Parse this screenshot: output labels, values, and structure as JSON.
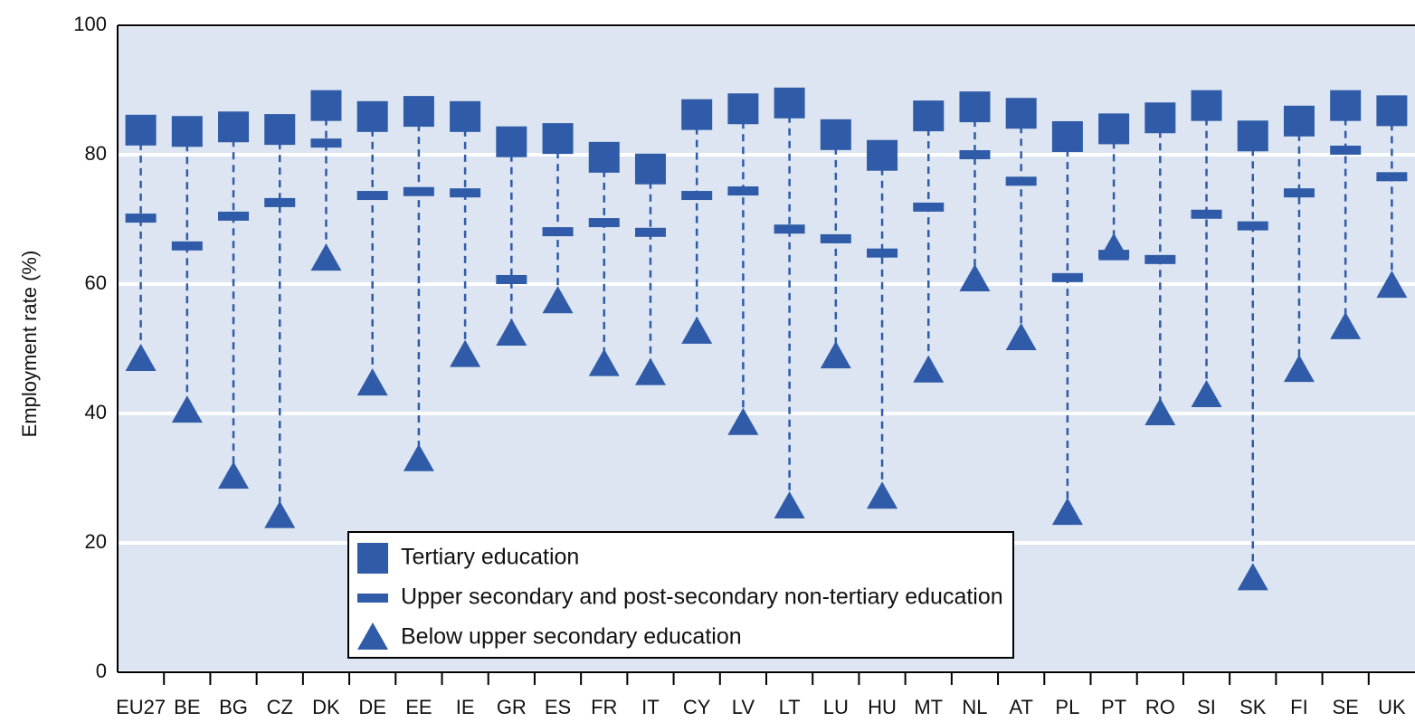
{
  "chart_data": {
    "type": "dot-range",
    "y_label": "Employment rate (%)",
    "categories": [
      "EU27",
      "BE",
      "BG",
      "CZ",
      "DK",
      "DE",
      "EE",
      "IE",
      "GR",
      "ES",
      "FR",
      "IT",
      "CY",
      "LV",
      "LT",
      "LU",
      "HU",
      "MT",
      "NL",
      "AT",
      "PL",
      "PT",
      "RO",
      "SI",
      "SK",
      "FI",
      "SE",
      "UK"
    ],
    "series": [
      {
        "name": "Tertiary education",
        "color": "#2f5ba8",
        "marker": "square",
        "values": [
          83.8,
          83.6,
          84.3,
          83.9,
          87.6,
          85.9,
          86.7,
          85.9,
          82.0,
          82.5,
          79.6,
          77.8,
          86.2,
          87.1,
          88.0,
          83.1,
          79.9,
          86.0,
          87.4,
          86.4,
          82.8,
          84.0,
          85.7,
          87.6,
          82.9,
          85.2,
          87.6,
          86.8
        ]
      },
      {
        "name": "Upper secondary and post-secondary non-tertiary education",
        "color": "#2f5ba8",
        "marker": "dash",
        "values": [
          70.2,
          65.9,
          70.5,
          72.6,
          81.8,
          73.7,
          74.3,
          74.1,
          60.7,
          68.1,
          69.5,
          68.0,
          73.7,
          74.4,
          68.5,
          67.0,
          64.8,
          71.9,
          80.0,
          75.9,
          61.0,
          64.6,
          63.8,
          70.8,
          69.0,
          74.1,
          80.7,
          76.6
        ]
      },
      {
        "name": "Below upper secondary education",
        "color": "#2f5ba8",
        "marker": "triangle",
        "values": [
          48.4,
          40.4,
          30.2,
          24.1,
          63.9,
          44.6,
          32.9,
          49.0,
          52.3,
          57.3,
          47.6,
          46.2,
          52.6,
          38.5,
          25.6,
          48.8,
          27.1,
          46.6,
          60.7,
          51.6,
          24.6,
          65.5,
          40.0,
          42.8,
          14.5,
          46.7,
          53.3,
          59.7
        ]
      }
    ],
    "ylim": [
      0,
      100
    ],
    "yticks": [
      0,
      20,
      40,
      60,
      80,
      100
    ],
    "grid": true,
    "background": "#dce5f1"
  }
}
